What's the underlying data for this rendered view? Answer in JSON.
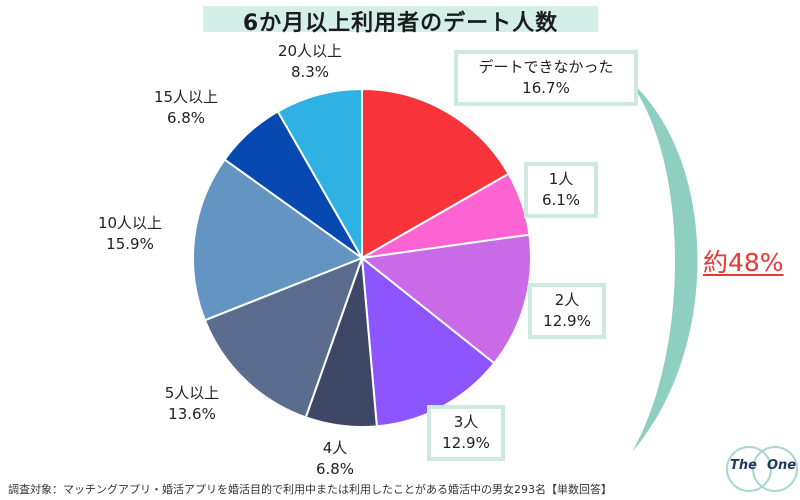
{
  "title": "6か月以上利用者のデート人数",
  "summary_label": "約48%",
  "footnote": "調査対象：マッチングアプリ・婚活アプリを婚活目的で利用中または利用したことがある婚活中の男女293名【単数回答】",
  "logo": {
    "left": "The",
    "right": "One"
  },
  "colors": {
    "bracket": "#8ecfc0",
    "highlight": "#e53935",
    "box_border": "#cde9e1",
    "title_bg": "#d4efe8"
  },
  "chart_data": {
    "type": "pie",
    "title": "6か月以上利用者のデート人数",
    "unit": "%",
    "slices": [
      {
        "label": "デートできなかった",
        "value": 16.7,
        "display": "16.7%",
        "color": "#f9333a"
      },
      {
        "label": "1人",
        "value": 6.1,
        "display": "6.1%",
        "color": "#fe63d3"
      },
      {
        "label": "2人",
        "value": 12.9,
        "display": "12.9%",
        "color": "#c96ae6"
      },
      {
        "label": "3人",
        "value": 12.9,
        "display": "12.9%",
        "color": "#8c55fd"
      },
      {
        "label": "4人",
        "value": 6.8,
        "display": "6.8%",
        "color": "#3f4766"
      },
      {
        "label": "5人以上",
        "value": 13.6,
        "display": "13.6%",
        "color": "#5a6d8f"
      },
      {
        "label": "10人以上",
        "value": 15.9,
        "display": "15.9%",
        "color": "#6494c1"
      },
      {
        "label": "15人以上",
        "value": 6.8,
        "display": "6.8%",
        "color": "#0549b1"
      },
      {
        "label": "20人以上",
        "value": 8.3,
        "display": "8.3%",
        "color": "#2eb1e3"
      }
    ]
  }
}
